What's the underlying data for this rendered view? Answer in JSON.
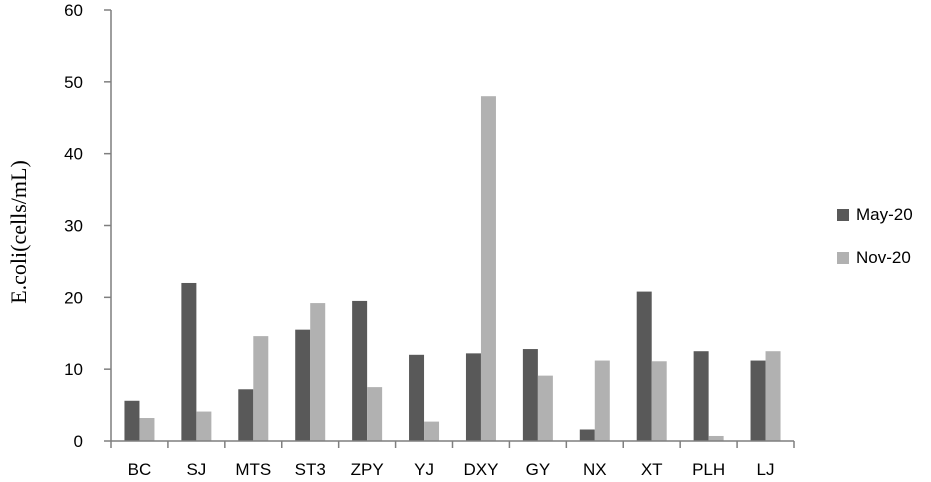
{
  "chart_data": {
    "type": "bar",
    "title": "",
    "xlabel": "",
    "ylabel": "E.coli(cells/mL)",
    "ylim": [
      0,
      60
    ],
    "yticks": [
      0,
      10,
      20,
      30,
      40,
      50,
      60
    ],
    "grid": false,
    "legend_position": "right",
    "categories": [
      "BC",
      "SJ",
      "MTS",
      "ST3",
      "ZPY",
      "YJ",
      "DXY",
      "GY",
      "NX",
      "XT",
      "PLH",
      "LJ"
    ],
    "series": [
      {
        "name": "May-20",
        "color": "#595959",
        "values": [
          5.6,
          22.0,
          7.2,
          15.5,
          19.5,
          12.0,
          12.2,
          12.8,
          1.6,
          20.8,
          12.5,
          11.2
        ]
      },
      {
        "name": "Nov-20",
        "color": "#b1b1b1",
        "values": [
          3.2,
          4.1,
          14.6,
          19.2,
          7.5,
          2.7,
          48.0,
          9.1,
          11.2,
          11.1,
          0.7,
          12.5
        ]
      }
    ]
  }
}
